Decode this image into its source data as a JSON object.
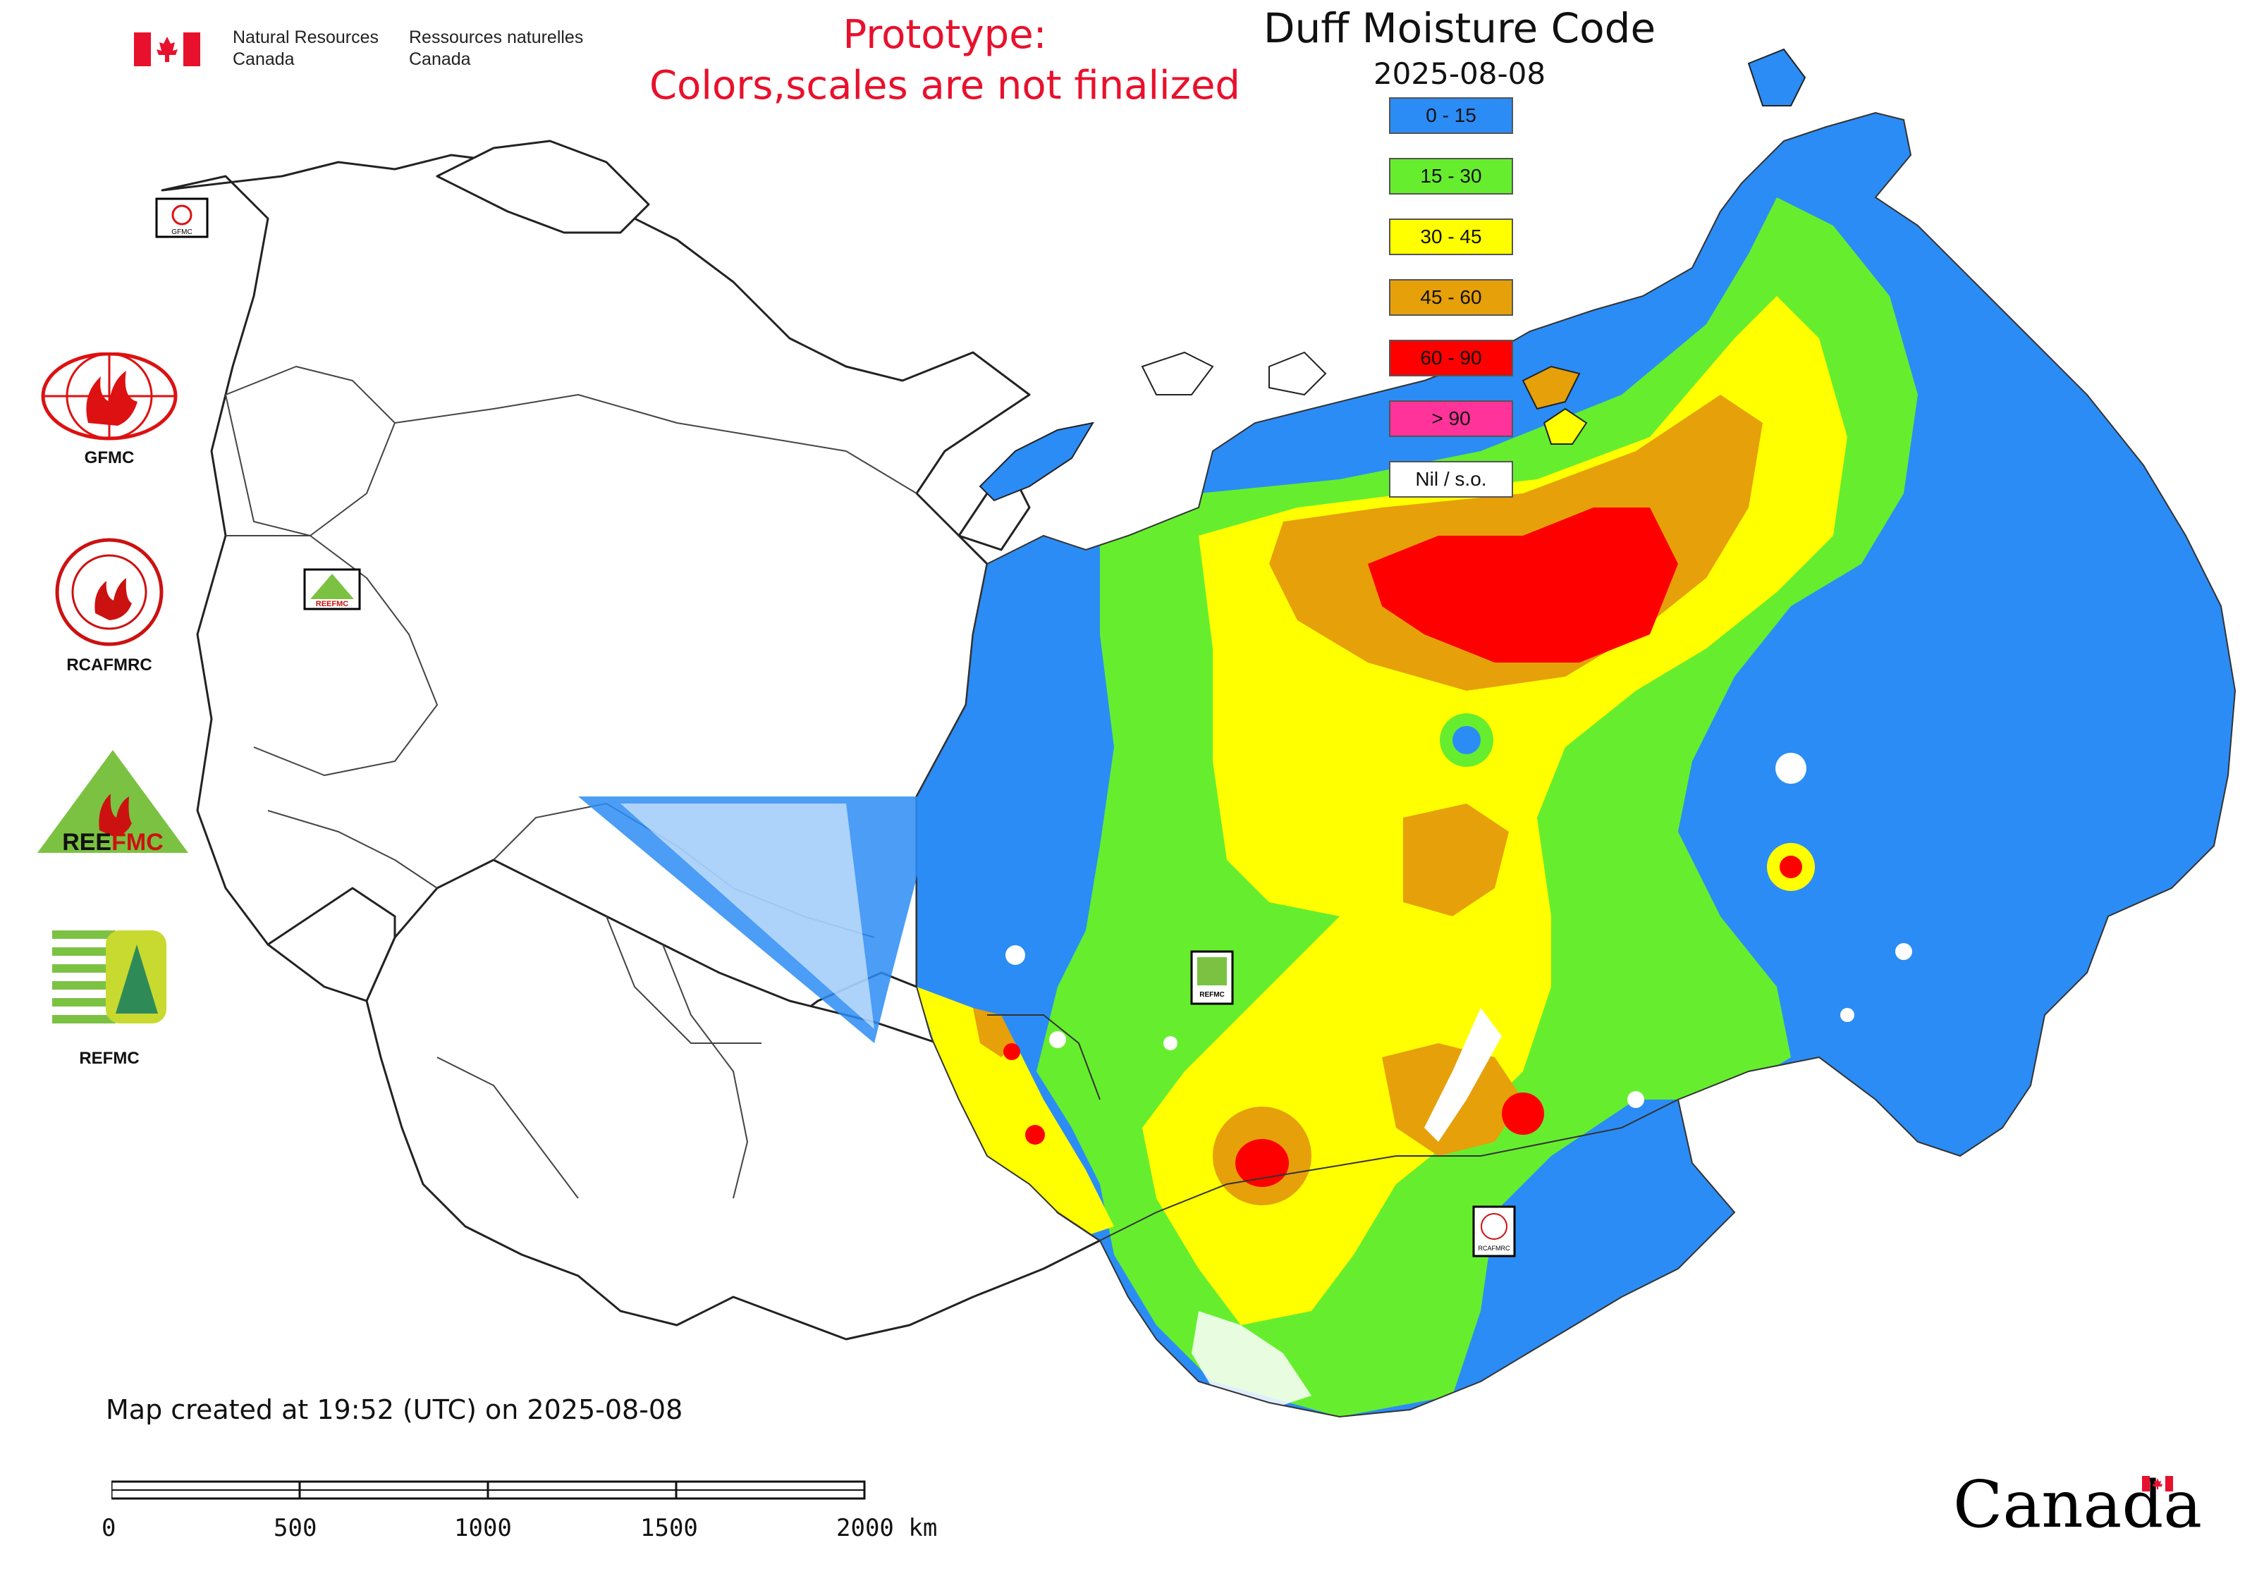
{
  "header": {
    "department_en": [
      "Natural Resources",
      "Canada"
    ],
    "department_fr": [
      "Ressources naturelles",
      "Canada"
    ],
    "prototype_line1": "Prototype:",
    "prototype_line2": "Colors,scales are not finalized"
  },
  "map": {
    "title": "Duff Moisture Code",
    "date": "2025-08-08"
  },
  "legend": [
    {
      "label": "0 - 15",
      "color": "#2b8cf5"
    },
    {
      "label": "15 - 30",
      "color": "#66ee2e"
    },
    {
      "label": "30 - 45",
      "color": "#ffff00"
    },
    {
      "label": "45 - 60",
      "color": "#e6a00a"
    },
    {
      "label": "60 - 90",
      "color": "#ff0000"
    },
    {
      "label": "> 90",
      "color": "#ff3399"
    },
    {
      "label": "Nil / s.o.",
      "color": "#ffffff"
    }
  ],
  "partners": [
    {
      "label": "GFMC"
    },
    {
      "label": "RCAFMRC"
    },
    {
      "label": "REEFMC"
    },
    {
      "label": "REFMC"
    }
  ],
  "map_markers": [
    {
      "label": "GFMC"
    },
    {
      "label": "REEFMC"
    },
    {
      "label": "REFMC"
    },
    {
      "label": "RCAFMRC"
    }
  ],
  "footer": {
    "created": "Map created at 19:52 (UTC) on 2025-08-08",
    "scale_ticks": [
      "0",
      "500",
      "1000",
      "1500",
      "2000 km"
    ],
    "wordmark": "Canada"
  }
}
